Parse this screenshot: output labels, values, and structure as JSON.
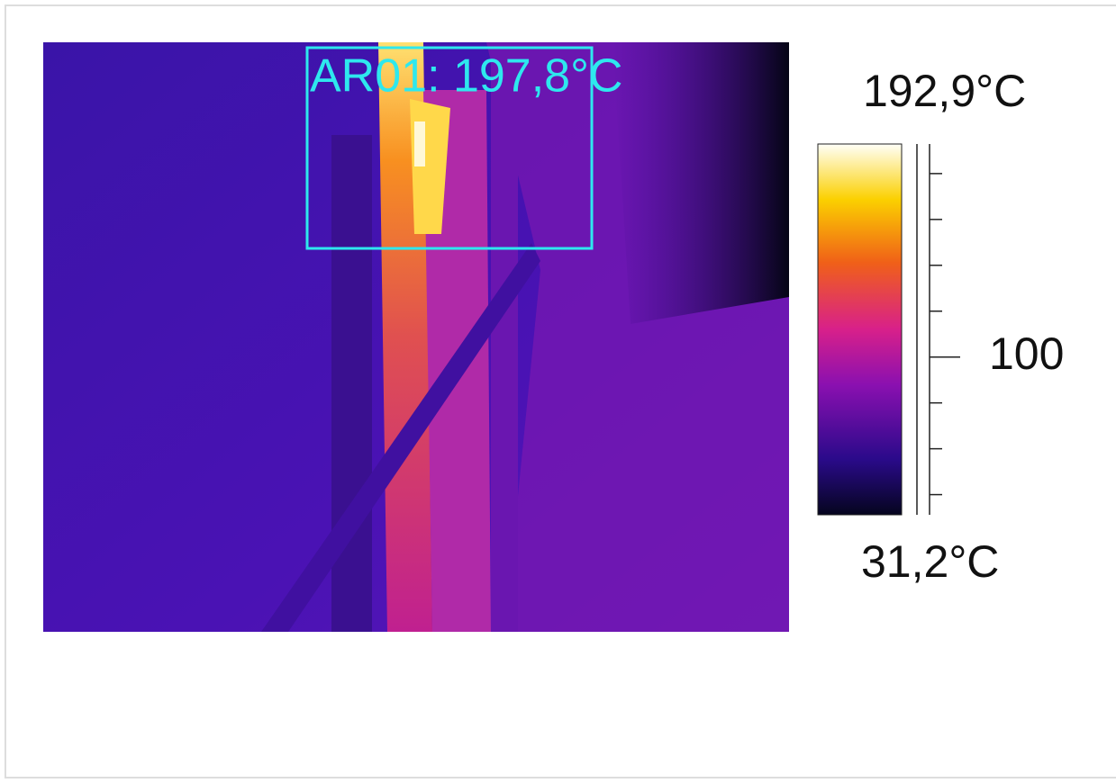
{
  "annotation": {
    "label": "AR01: 197,8°C"
  },
  "scale": {
    "max": {
      "value": 192.9,
      "label": "192,9°C"
    },
    "min": {
      "value": 31.2,
      "label": "31,2°C"
    },
    "ticks": [
      40,
      60,
      80,
      100,
      120,
      140,
      160,
      180
    ],
    "labeled_ticks": [
      100
    ]
  }
}
